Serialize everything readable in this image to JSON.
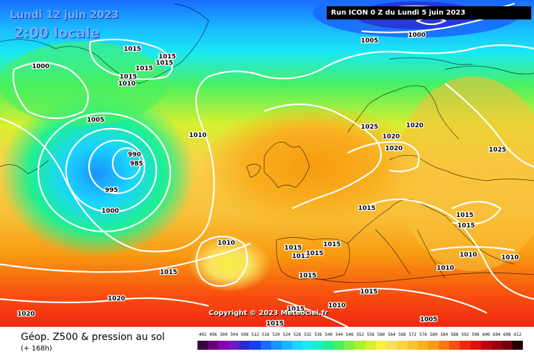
{
  "header": {
    "date": "Lundi 12 juin 2023",
    "time": "2:00 locale",
    "run": "Run ICON 0 Z du Lundi 5 juin 2023"
  },
  "copyright": "Copyright © 2023 Meteociel.fr",
  "footer": {
    "title": "Géop. Z500 & pression au sol",
    "subtitle": "(+ 168h)"
  },
  "legend": {
    "values": [
      "492",
      "496",
      "500",
      "504",
      "508",
      "512",
      "516",
      "520",
      "524",
      "528",
      "532",
      "536",
      "540",
      "544",
      "548",
      "552",
      "556",
      "560",
      "564",
      "568",
      "572",
      "576",
      "580",
      "584",
      "588",
      "592",
      "596",
      "600",
      "604",
      "608",
      "612"
    ],
    "colors": [
      "#3c0040",
      "#6a0078",
      "#8a00b0",
      "#6a1ec8",
      "#2a2ad0",
      "#1840f0",
      "#1a6cff",
      "#1a92ff",
      "#1ab4ff",
      "#1ad4ff",
      "#1ae8f4",
      "#1af0c8",
      "#20f090",
      "#48f060",
      "#80f040",
      "#b0f030",
      "#d8f030",
      "#f8f040",
      "#fae060",
      "#fad048",
      "#f8c038",
      "#f8b020",
      "#f89a10",
      "#f87810",
      "#f85010",
      "#f02810",
      "#e01010",
      "#c00010",
      "#980010",
      "#700010",
      "#200000"
    ]
  },
  "isobars": [
    {
      "label": "1000",
      "pos": "nw-greenland-1"
    },
    {
      "label": "1015",
      "pos": "greenland-1"
    },
    {
      "label": "1015",
      "pos": "greenland-2"
    },
    {
      "label": "1015",
      "pos": "greenland-3"
    },
    {
      "label": "1015",
      "pos": "greenland-4"
    },
    {
      "label": "1015",
      "pos": "greenland-5"
    },
    {
      "label": "1010",
      "pos": "greenland-6"
    },
    {
      "label": "1005",
      "pos": "greenland-7"
    },
    {
      "label": "990",
      "pos": "low-1"
    },
    {
      "label": "985",
      "pos": "low-2"
    },
    {
      "label": "995",
      "pos": "low-3"
    },
    {
      "label": "1000",
      "pos": "low-4"
    },
    {
      "label": "1010",
      "pos": "atlantic-1"
    },
    {
      "label": "1005",
      "pos": "north-1"
    },
    {
      "label": "1000",
      "pos": "north-2"
    },
    {
      "label": "1025",
      "pos": "scand-1"
    },
    {
      "label": "1020",
      "pos": "scand-2"
    },
    {
      "label": "1020",
      "pos": "scand-3"
    },
    {
      "label": "1020",
      "pos": "scand-4"
    },
    {
      "label": "1025",
      "pos": "russia-1"
    },
    {
      "label": "1015",
      "pos": "france-1"
    },
    {
      "label": "1015",
      "pos": "east-1"
    },
    {
      "label": "1015",
      "pos": "east-2"
    },
    {
      "label": "1010",
      "pos": "azores-1"
    },
    {
      "label": "1015",
      "pos": "iberia-1"
    },
    {
      "label": "1015",
      "pos": "iberia-2"
    },
    {
      "label": "1015",
      "pos": "iberia-3"
    },
    {
      "label": "1015",
      "pos": "iberia-4"
    },
    {
      "label": "1015",
      "pos": "iberia-5"
    },
    {
      "label": "1010",
      "pos": "balkan-1"
    },
    {
      "label": "1010",
      "pos": "balkan-2"
    },
    {
      "label": "1010",
      "pos": "east-3"
    },
    {
      "label": "1015",
      "pos": "atlantic-2"
    },
    {
      "label": "1020",
      "pos": "atlantic-3"
    },
    {
      "label": "1020",
      "pos": "atlantic-4"
    },
    {
      "label": "1015",
      "pos": "africa-1"
    },
    {
      "label": "1015",
      "pos": "africa-2"
    },
    {
      "label": "1015",
      "pos": "africa-3"
    },
    {
      "label": "1010",
      "pos": "africa-4"
    },
    {
      "label": "1005",
      "pos": "africa-5"
    }
  ]
}
